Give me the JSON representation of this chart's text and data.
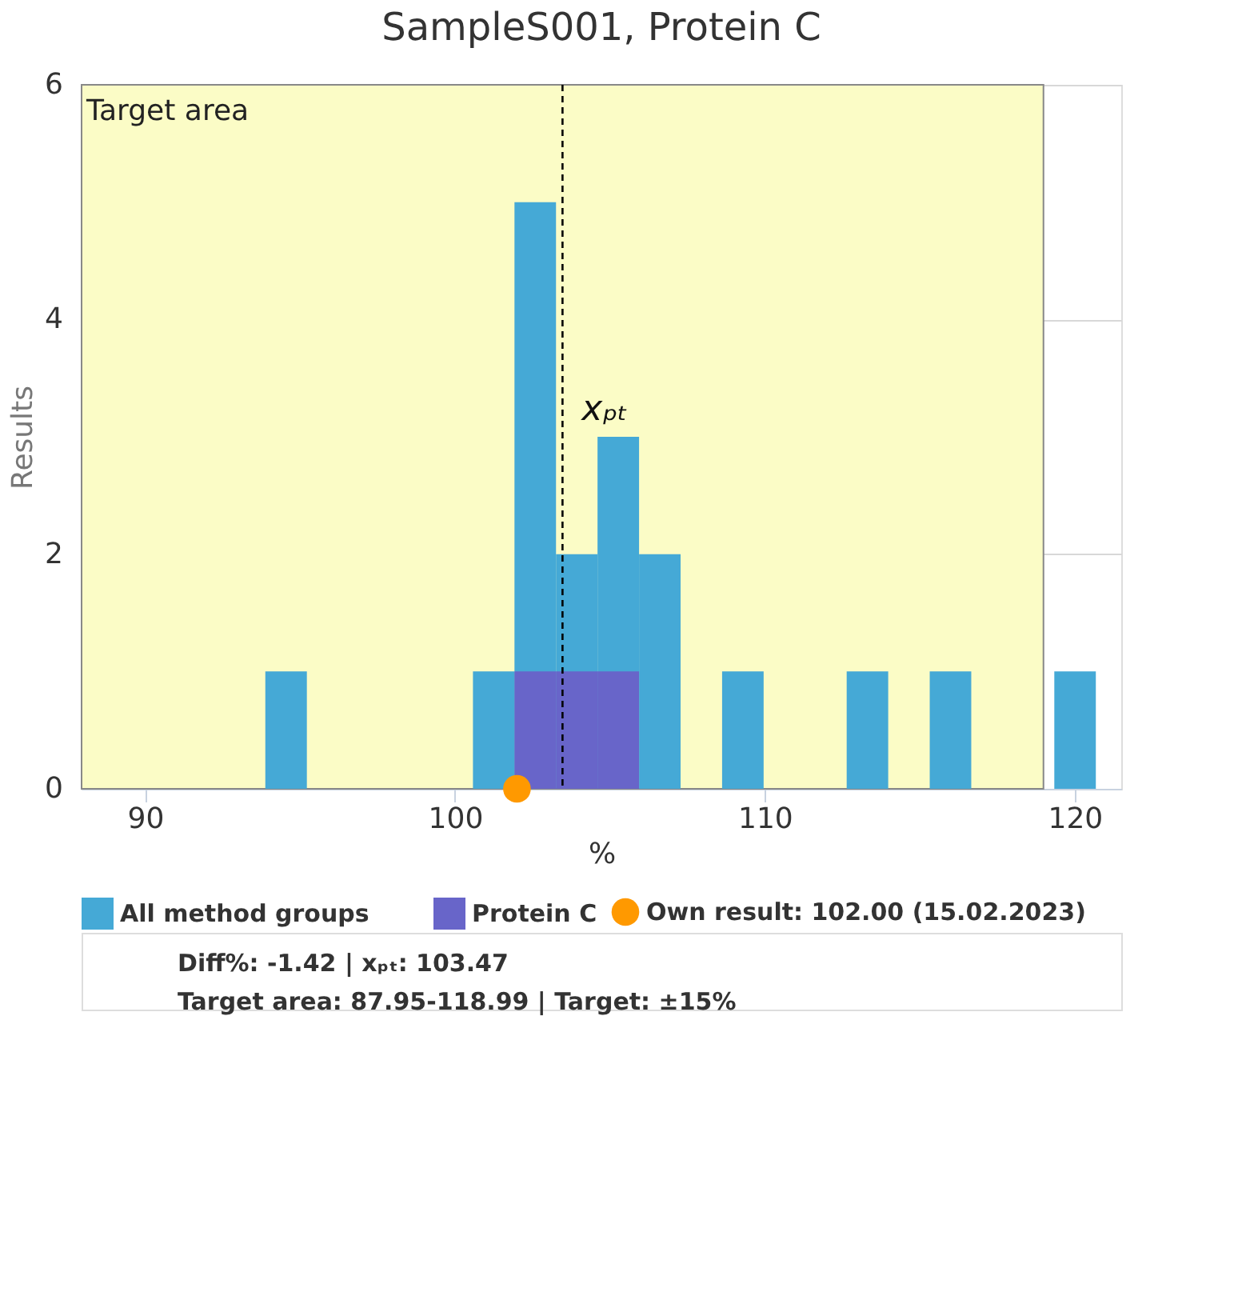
{
  "chart_data": {
    "type": "histogram",
    "title": "SampleS001, Protein C",
    "xlabel": "%",
    "ylabel": "Results",
    "bins": [
      93.88,
      95.22,
      96.56,
      97.9,
      99.24,
      100.58,
      101.92,
      103.26,
      104.6,
      105.94,
      107.28,
      108.62,
      109.96,
      111.3,
      112.64,
      113.98,
      115.32,
      116.66,
      118.0,
      119.34,
      120.68
    ],
    "series": [
      {
        "name": "All method groups",
        "color": "#45a9d6",
        "values": [
          1,
          0,
          0,
          0,
          0,
          1,
          5,
          2,
          3,
          2,
          0,
          1,
          0,
          0,
          1,
          0,
          1,
          0,
          0,
          1
        ]
      },
      {
        "name": "Protein C",
        "color": "#6865c9",
        "values": [
          0,
          0,
          0,
          0,
          0,
          0,
          1,
          1,
          1,
          0,
          0,
          0,
          0,
          0,
          0,
          0,
          0,
          0,
          0,
          0
        ]
      },
      {
        "name": "Own result: 102.00 (15.02.2023)",
        "type": "scatter",
        "color": "#ff9900",
        "x": [
          102.0
        ],
        "values": [
          0
        ]
      }
    ],
    "xlim": [
      87.95,
      121.5
    ],
    "xticks": [
      90,
      100,
      110,
      120
    ],
    "ylim": [
      0,
      6
    ],
    "yticks": [
      0,
      2,
      4,
      6
    ],
    "grid": "y",
    "legend": "bottom",
    "marker": "circle",
    "ref_lines": [
      {
        "axis": "x",
        "value": 103.47,
        "label": "xₚₜ",
        "color": "#000000",
        "line_style": "dashed"
      }
    ],
    "bands": [
      {
        "axis": "x",
        "from": 87.95,
        "to": 118.99,
        "label": "Target area",
        "color": "#fbfcc6"
      }
    ],
    "annotations": [
      "Diff%: -1.42 | xₚₜ: 103.47",
      "Target area: 87.95-118.99 | Target: ±15%"
    ]
  }
}
